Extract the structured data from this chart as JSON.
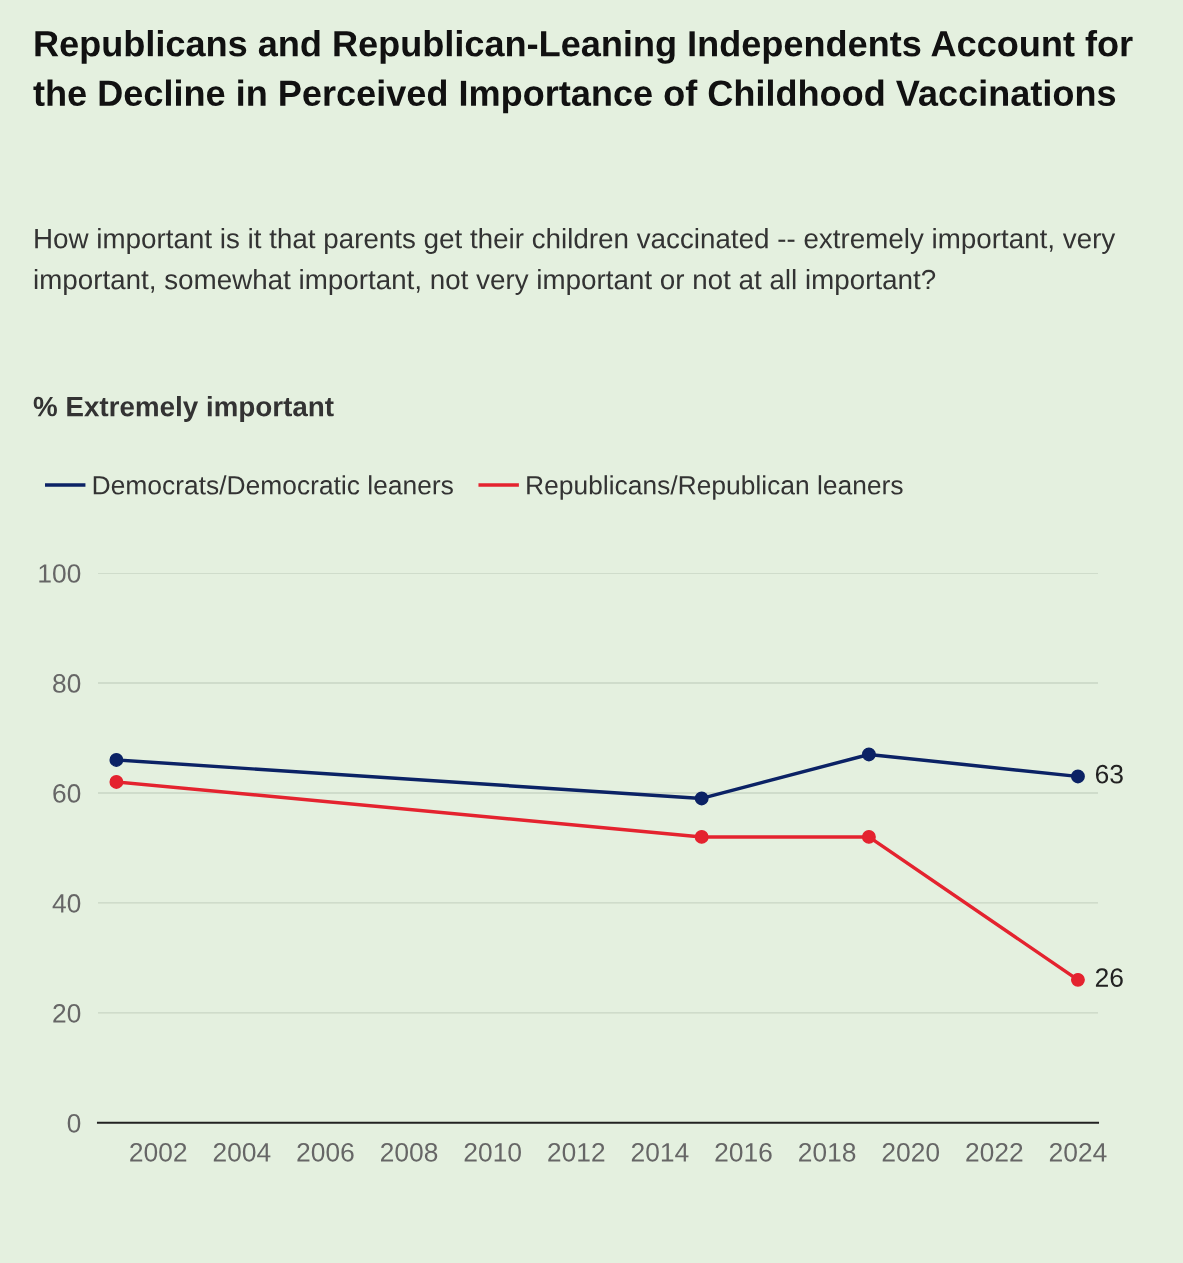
{
  "chart_data": {
    "type": "line",
    "title": "Republicans and Republican-Leaning Independents Account for the Decline in Perceived Importance of Childhood Vaccinations",
    "subtitle": "How important is it that parents get their children vaccinated -- extremely important, very important, somewhat important, not very important or not at all important?",
    "annotations": [
      "% Extremely important"
    ],
    "x": [
      2001,
      2015,
      2019,
      2024
    ],
    "series": [
      {
        "name": "Democrats/Democratic leaners",
        "color": "#0b2265",
        "values": [
          66,
          59,
          67,
          63
        ],
        "value_labels": [
          null,
          null,
          null,
          "63"
        ]
      },
      {
        "name": "Republicans/Republican leaners",
        "color": "#e4232f",
        "values": [
          62,
          52,
          52,
          26
        ],
        "value_labels": [
          null,
          null,
          null,
          "26"
        ]
      }
    ],
    "xlim": [
      2000.56,
      2024.48
    ],
    "xticks": [
      2002,
      2004,
      2006,
      2008,
      2010,
      2012,
      2014,
      2016,
      2018,
      2020,
      2022,
      2024
    ],
    "ylim": [
      0,
      100
    ],
    "yticks": [
      0,
      20,
      40,
      60,
      80,
      100
    ],
    "grid": "y",
    "legend": "top left",
    "marker": "circle",
    "line_style": "solid"
  }
}
